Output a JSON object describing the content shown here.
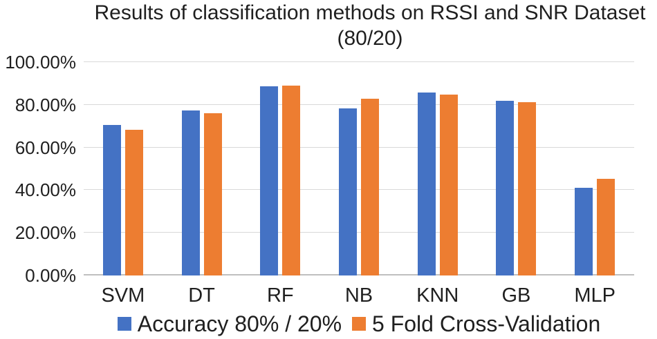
{
  "title": {
    "line1": "Results of classification methods on RSSI and SNR Dataset",
    "line2": "(80/20)"
  },
  "colors": {
    "series1": "#4472C4",
    "series2": "#ED7D31",
    "gridline": "#D9D9D9",
    "axis_line": "#BFBFBF",
    "text": "#1F1F1F"
  },
  "chart_data": {
    "type": "bar",
    "title": "Results of classification methods on RSSI and SNR Dataset (80/20)",
    "categories": [
      "SVM",
      "DT",
      "RF",
      "NB",
      "KNN",
      "GB",
      "MLP"
    ],
    "series": [
      {
        "name": "Accuracy 80% / 20%",
        "color": "#4472C4",
        "values": [
          70.4,
          77.2,
          88.7,
          78.3,
          85.8,
          82.0,
          41.0
        ]
      },
      {
        "name": "5 Fold Cross-Validation",
        "color": "#ED7D31",
        "values": [
          68.2,
          76.0,
          89.1,
          83.0,
          84.9,
          81.2,
          45.4
        ]
      }
    ],
    "xlabel": "",
    "ylabel": "",
    "ylim": [
      0,
      100
    ],
    "ytick_values": [
      0,
      20,
      40,
      60,
      80,
      100
    ],
    "yticks": [
      "0.00%",
      "20.00%",
      "40.00%",
      "60.00%",
      "80.00%",
      "100.00%"
    ],
    "grid": true,
    "legend_position": "bottom"
  }
}
